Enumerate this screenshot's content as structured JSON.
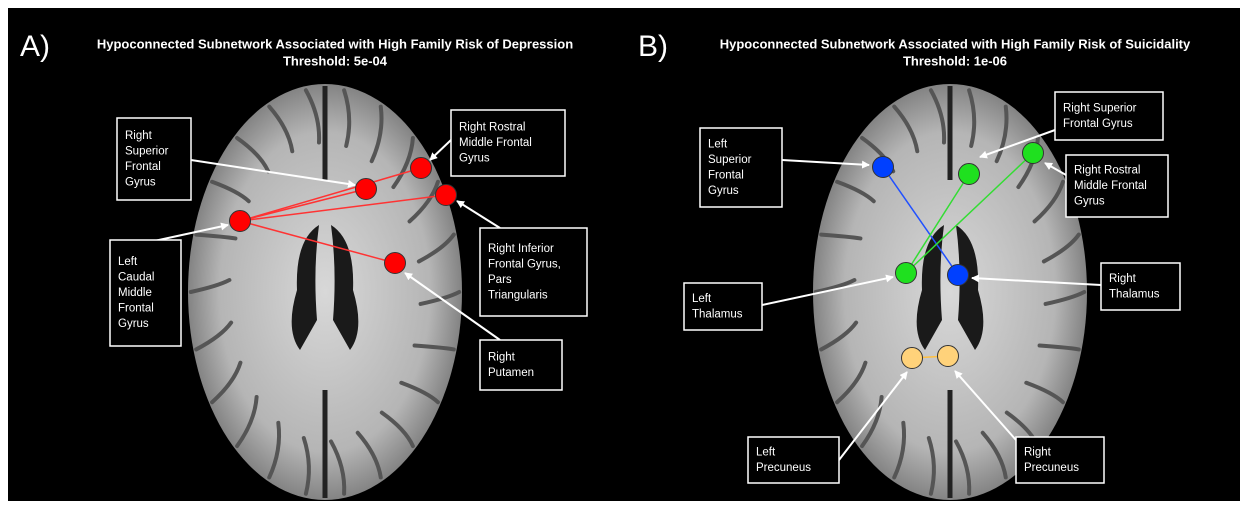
{
  "panels": [
    {
      "letter": "A)",
      "title": "Hypoconnected Subnetwork Associated with High Family Risk of Depression",
      "threshold": "Threshold: 5e-04",
      "labels": [
        [
          "Right",
          "Superior",
          "Frontal",
          "Gyrus"
        ],
        [
          "Right Rostral",
          "Middle Frontal",
          "Gyrus"
        ],
        [
          "Left",
          "Caudal",
          "Middle",
          "Frontal",
          "Gyrus"
        ],
        [
          "Right Inferior",
          "Frontal Gyrus,",
          "Pars",
          "Triangularis"
        ],
        [
          "Right",
          "Putamen"
        ]
      ]
    },
    {
      "letter": "B)",
      "title": "Hypoconnected Subnetwork Associated with High Family Risk of Suicidality",
      "threshold": "Threshold: 1e-06",
      "labels": [
        [
          "Left",
          "Superior",
          "Frontal",
          "Gyrus"
        ],
        [
          "Right Superior",
          "Frontal Gyrus"
        ],
        [
          "Right Rostral",
          "Middle  Frontal",
          "Gyrus"
        ],
        [
          "Left",
          "Thalamus"
        ],
        [
          "Right",
          "Thalamus"
        ],
        [
          "Left",
          "Precuneus"
        ],
        [
          "Right",
          "Precuneus"
        ]
      ]
    }
  ]
}
